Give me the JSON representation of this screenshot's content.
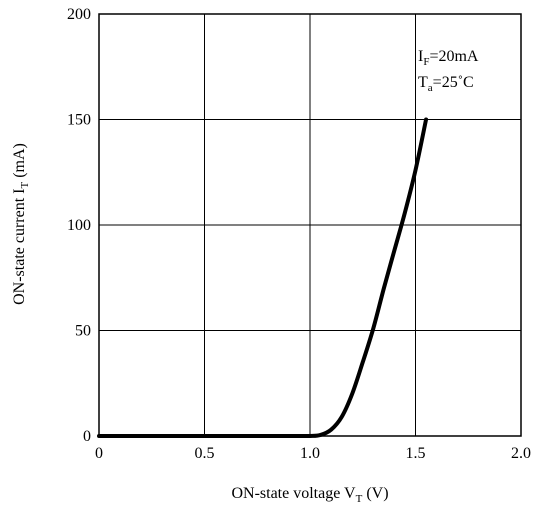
{
  "chart_data": {
    "type": "line",
    "title": "",
    "xlabel": {
      "main": "ON-state voltage V",
      "sub": "T",
      "unit": " (V)"
    },
    "ylabel": {
      "main": "ON-state current I",
      "sub": "T",
      "unit": " (mA)"
    },
    "xlim": [
      0,
      2.0
    ],
    "ylim": [
      0,
      200
    ],
    "x_ticks": [
      {
        "value": 0,
        "label": "0"
      },
      {
        "value": 0.5,
        "label": "0.5"
      },
      {
        "value": 1.0,
        "label": "1.0"
      },
      {
        "value": 1.5,
        "label": "1.5"
      },
      {
        "value": 2.0,
        "label": "2.0"
      }
    ],
    "y_ticks": [
      {
        "value": 0,
        "label": "0"
      },
      {
        "value": 50,
        "label": "50"
      },
      {
        "value": 100,
        "label": "100"
      },
      {
        "value": 150,
        "label": "150"
      },
      {
        "value": 200,
        "label": "200"
      }
    ],
    "grid": true,
    "annotations": [
      {
        "main": "I",
        "sub": "F",
        "rest": "=20mA"
      },
      {
        "main": "T",
        "sub": "a",
        "rest": "=25˚C"
      }
    ],
    "series": [
      {
        "x": [
          0,
          0.5,
          0.9,
          1.0,
          1.05,
          1.1,
          1.15,
          1.2,
          1.25,
          1.3,
          1.35,
          1.4,
          1.45,
          1.5,
          1.55
        ],
        "y": [
          0,
          0,
          0,
          0,
          0.5,
          3,
          9,
          20,
          35,
          51,
          70,
          88,
          106,
          126,
          150
        ],
        "color": "#000000"
      }
    ]
  }
}
